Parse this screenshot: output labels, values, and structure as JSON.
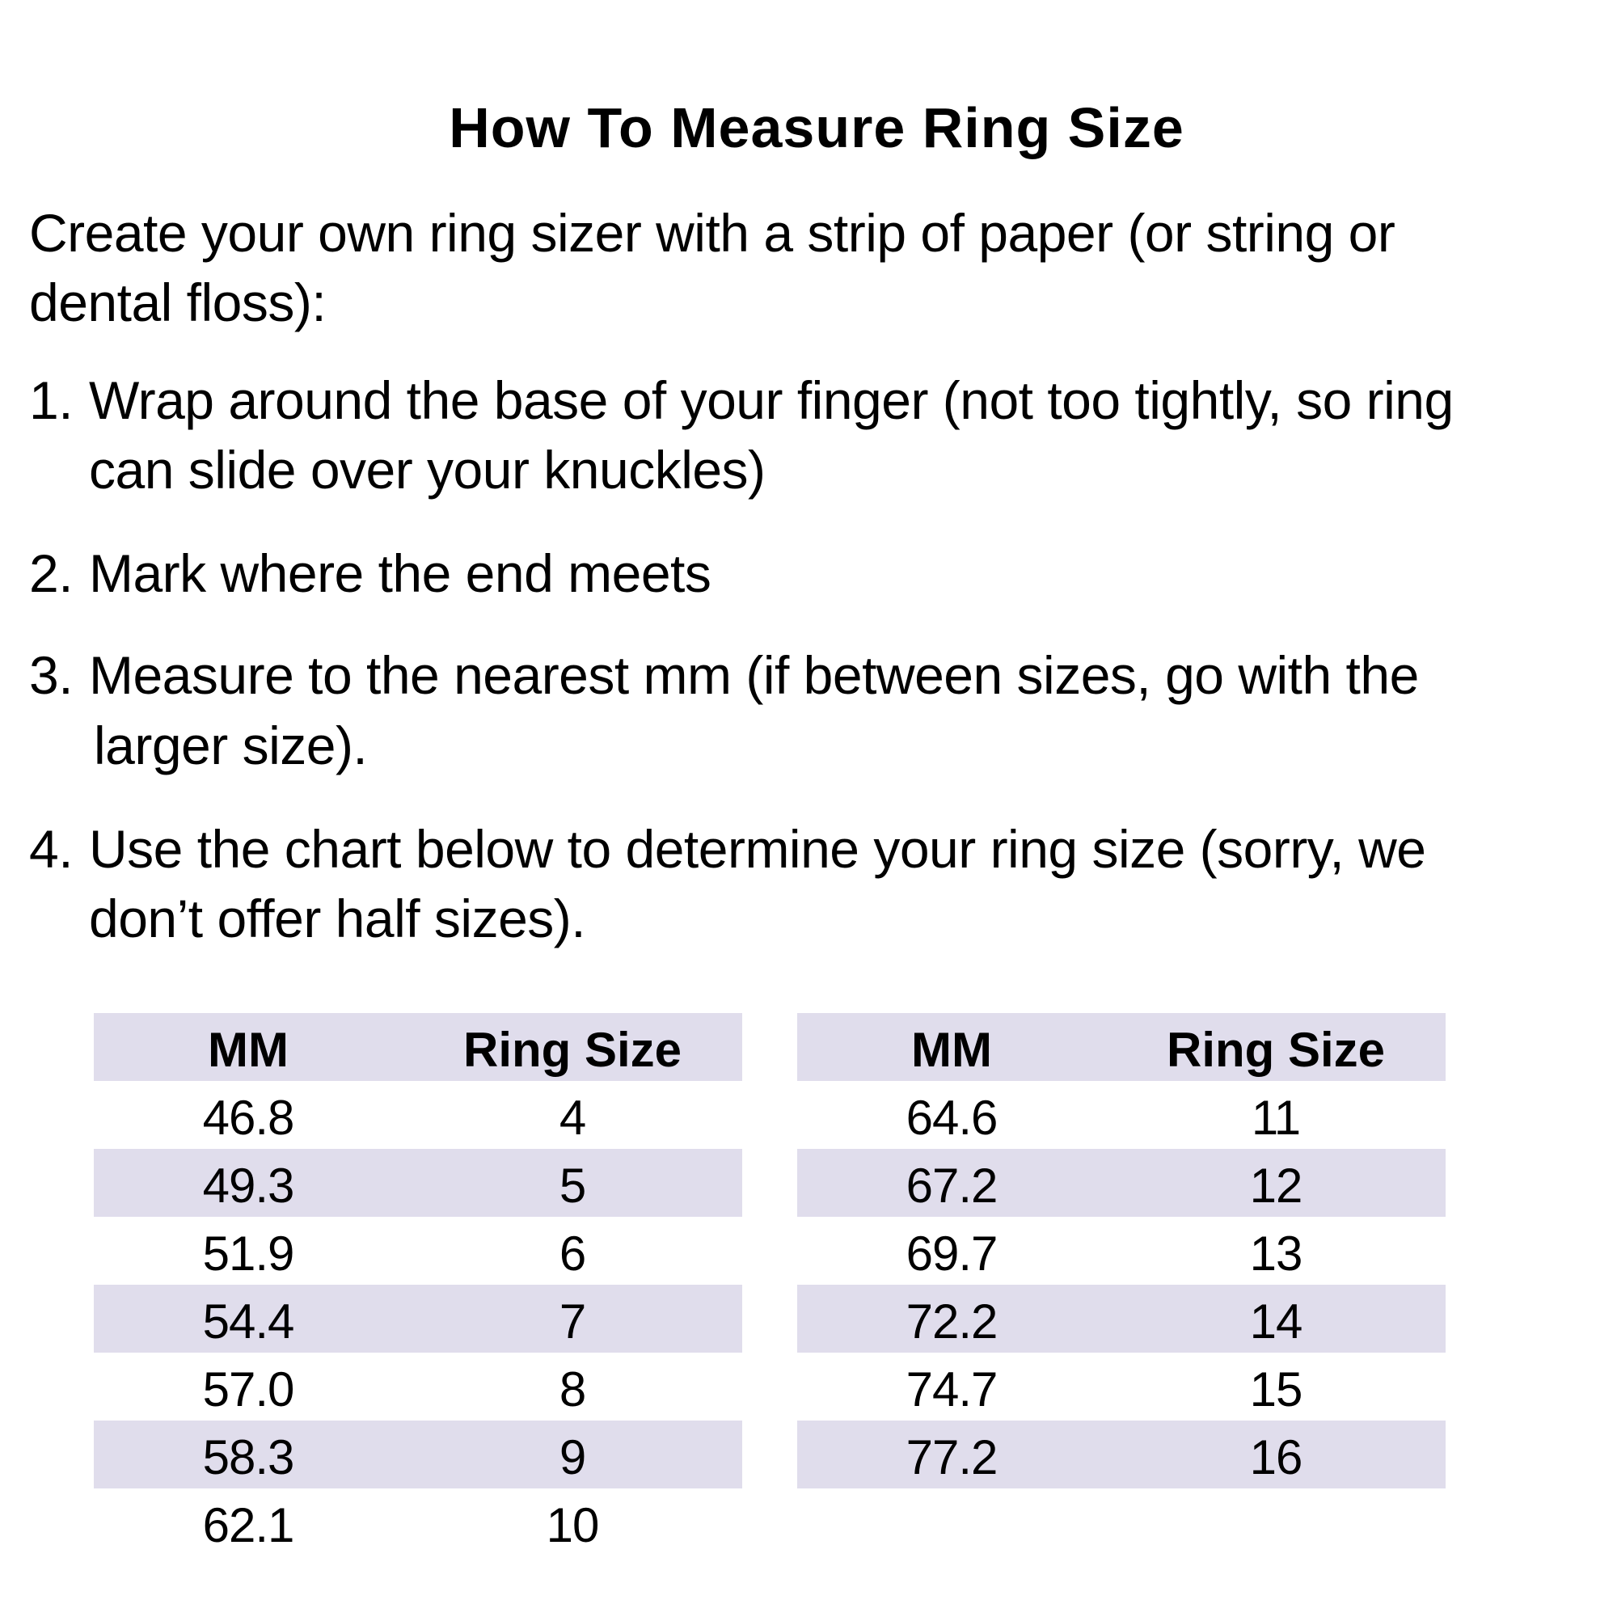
{
  "title": "How To Measure Ring Size",
  "intro": [
    "Create your own ring sizer with a strip of paper (or string or",
    "dental floss):"
  ],
  "steps": [
    {
      "num": "1.",
      "lines": [
        "Wrap around the base of your finger (not too tightly, so ring",
        "can slide over your knuckles)"
      ]
    },
    {
      "num": "2.",
      "lines": [
        "Mark where the end meets"
      ]
    },
    {
      "num": "3.",
      "lines": [
        "Measure to the nearest mm (if between sizes, go with the",
        "larger size)."
      ]
    },
    {
      "num": "4.",
      "lines": [
        "Use the chart below to determine your ring size (sorry, we",
        "don’t offer half sizes)."
      ]
    }
  ],
  "table_colors": {
    "shade": "#e0ddec"
  },
  "tables": [
    {
      "headers": [
        "MM",
        "Ring Size"
      ],
      "rows": [
        [
          "46.8",
          "4"
        ],
        [
          "49.3",
          "5"
        ],
        [
          "51.9",
          "6"
        ],
        [
          "54.4",
          "7"
        ],
        [
          "57.0",
          "8"
        ],
        [
          "58.3",
          "9"
        ],
        [
          "62.1",
          "10"
        ]
      ]
    },
    {
      "headers": [
        "MM",
        "Ring Size"
      ],
      "rows": [
        [
          "64.6",
          "11"
        ],
        [
          "67.2",
          "12"
        ],
        [
          "69.7",
          "13"
        ],
        [
          "72.2",
          "14"
        ],
        [
          "74.7",
          "15"
        ],
        [
          "77.2",
          "16"
        ]
      ]
    }
  ]
}
